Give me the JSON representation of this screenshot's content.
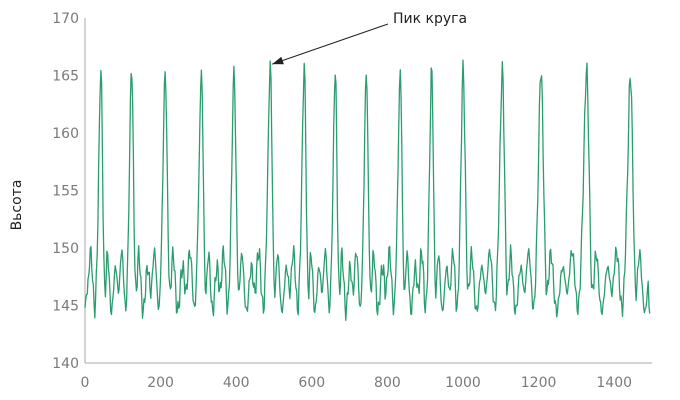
{
  "chart_data": {
    "type": "line",
    "ylabel": "Вьсота",
    "xlabel": "",
    "title": "",
    "xlim": [
      0,
      1500
    ],
    "ylim": [
      140,
      170
    ],
    "xticks": [
      0,
      200,
      400,
      600,
      800,
      1000,
      1200,
      1400
    ],
    "yticks": [
      140,
      145,
      150,
      155,
      160,
      165,
      170
    ],
    "grid": false,
    "line_color": "#2a9d6e",
    "annotation": {
      "text": "Пик круга",
      "point": [
        490,
        165.9
      ]
    },
    "peaks": [
      {
        "x": 42,
        "y": 165.5
      },
      {
        "x": 123,
        "y": 165.8
      },
      {
        "x": 212,
        "y": 165.3
      },
      {
        "x": 308,
        "y": 165.3
      },
      {
        "x": 394,
        "y": 165.4
      },
      {
        "x": 490,
        "y": 165.9
      },
      {
        "x": 580,
        "y": 165.8
      },
      {
        "x": 662,
        "y": 165.5
      },
      {
        "x": 744,
        "y": 165.3
      },
      {
        "x": 834,
        "y": 165.3
      },
      {
        "x": 917,
        "y": 165.5
      },
      {
        "x": 1000,
        "y": 165.5
      },
      {
        "x": 1104,
        "y": 165.5
      },
      {
        "x": 1206,
        "y": 165.5
      },
      {
        "x": 1327,
        "y": 165.5
      },
      {
        "x": 1443,
        "y": 165.0
      }
    ],
    "end_x": 1494
  }
}
